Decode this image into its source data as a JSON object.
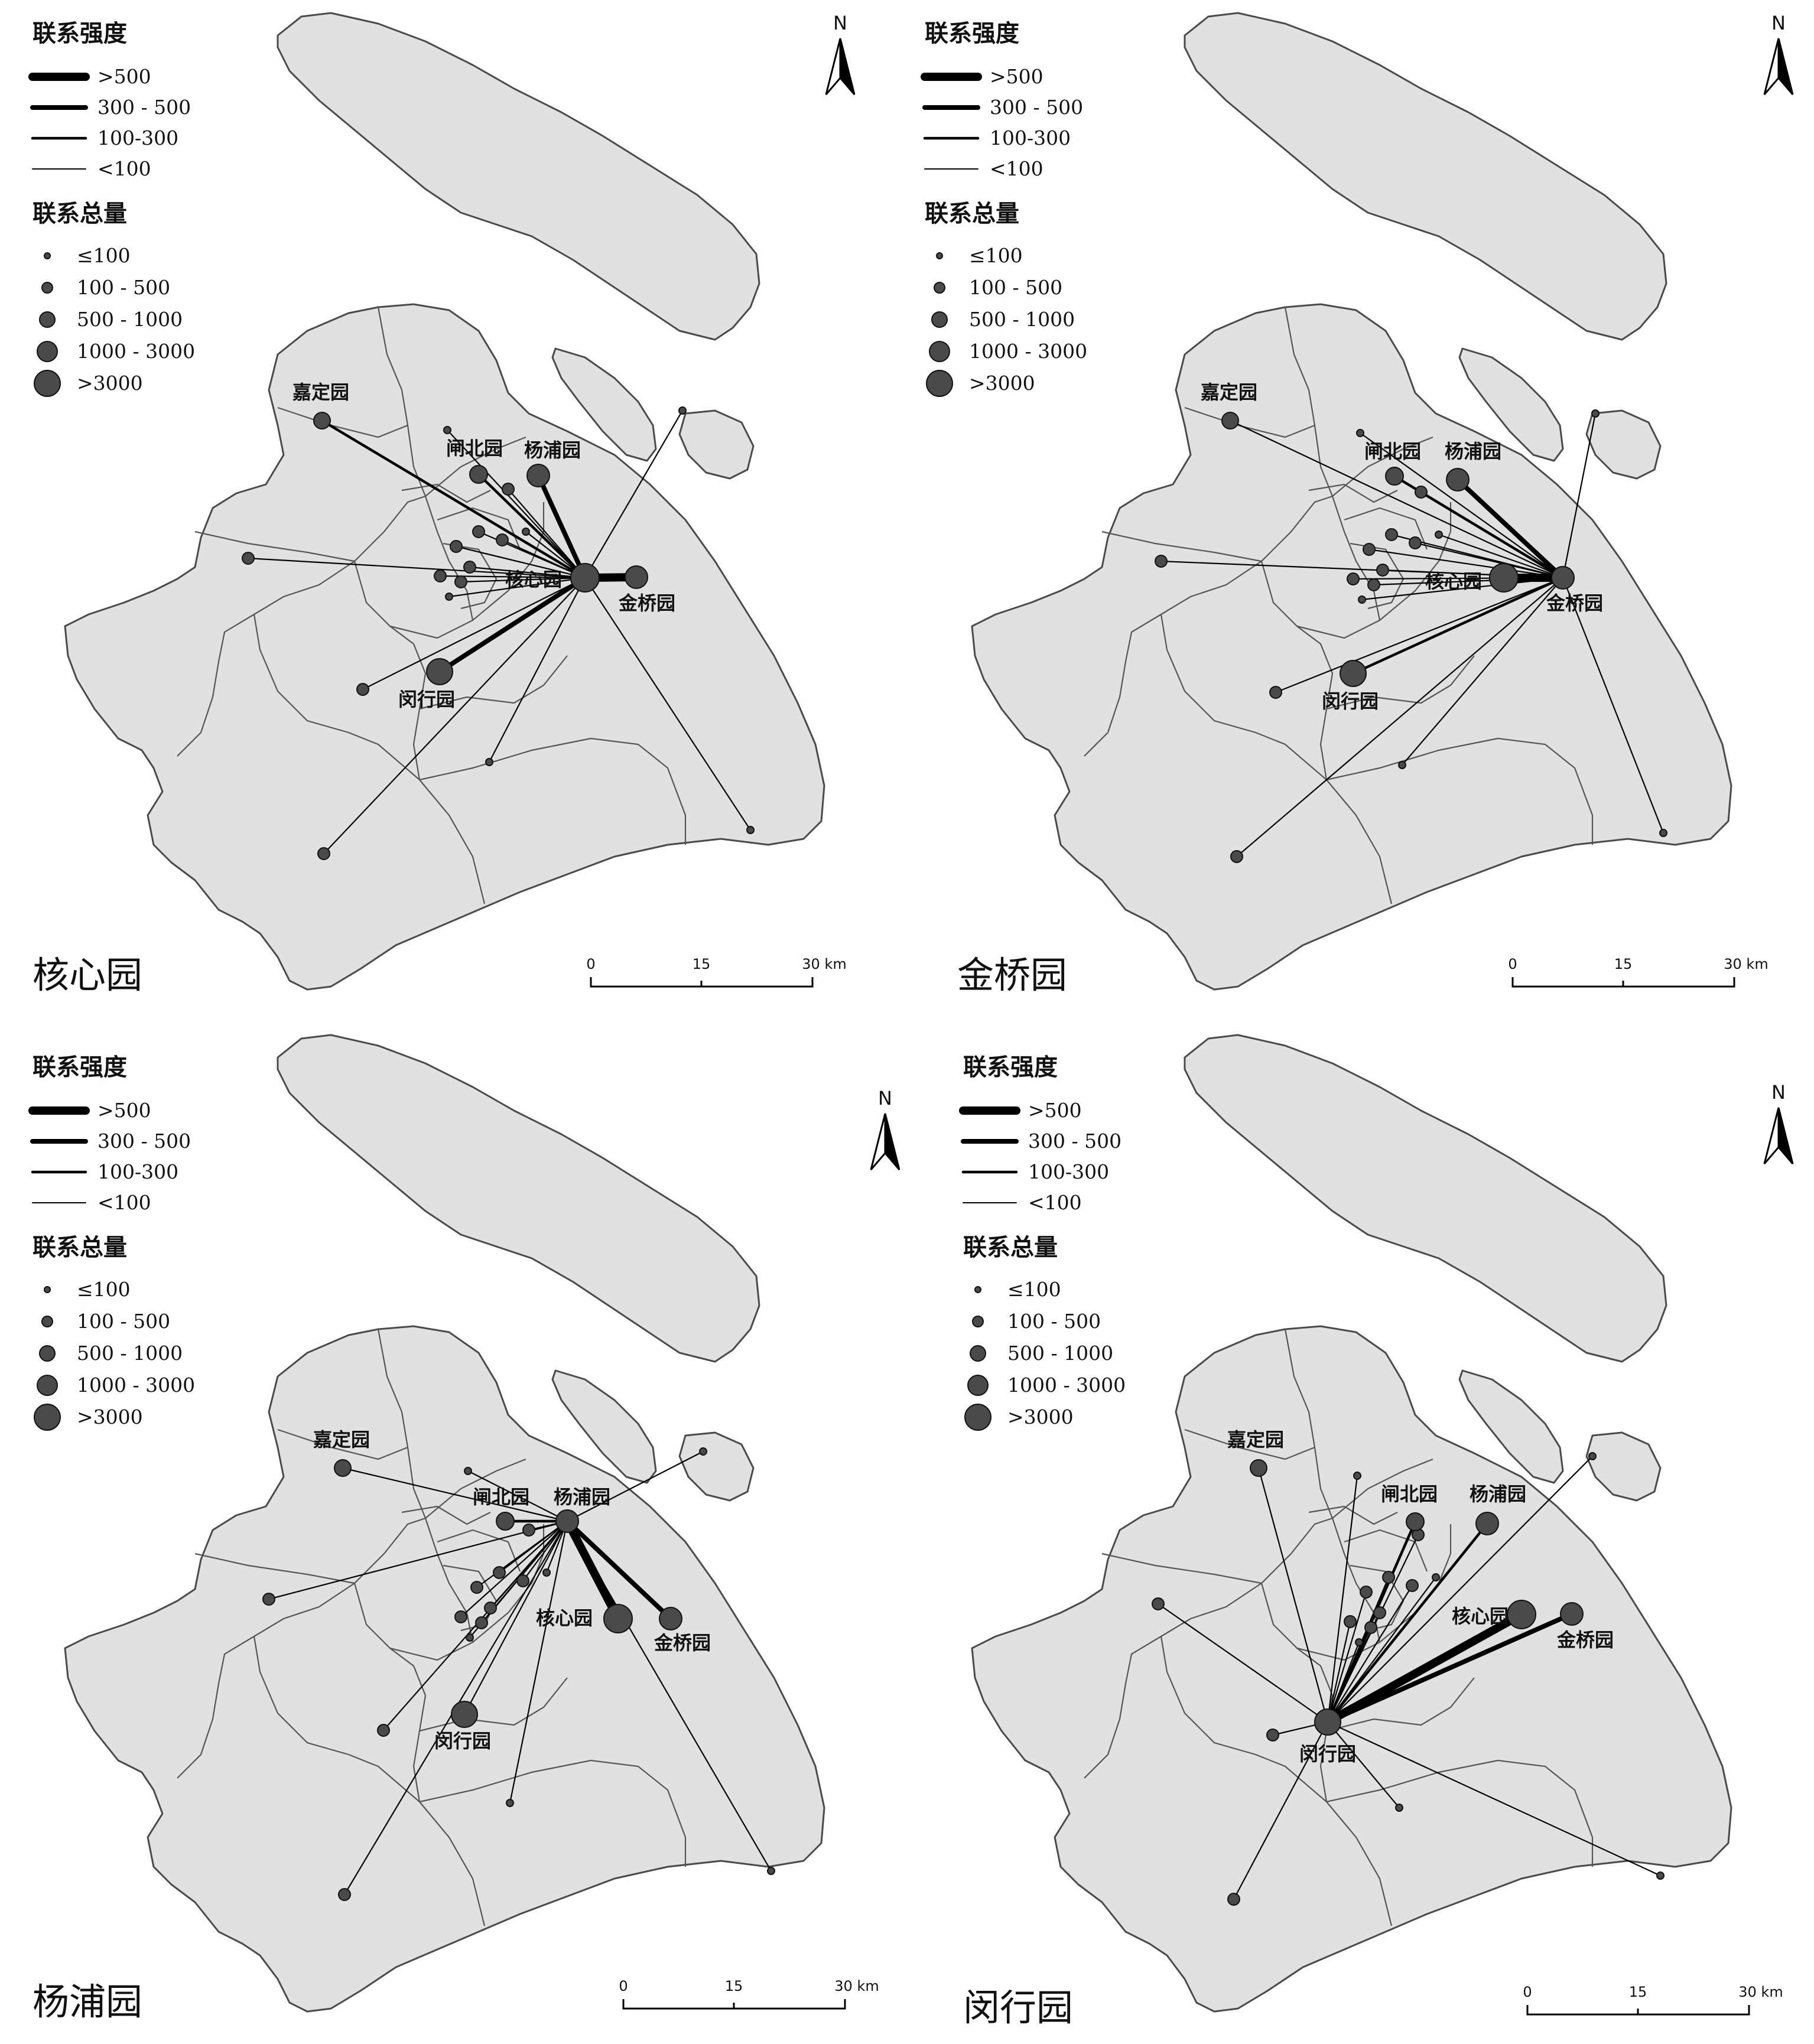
{
  "legend": {
    "strength_title": "联系强度",
    "strength_items": [
      ">500",
      "300 - 500",
      "100-300",
      "<100"
    ],
    "total_title": "联系总量",
    "total_items": [
      "≤100",
      "100 - 500",
      "500 - 1000",
      "1000 - 3000",
      ">3000"
    ]
  },
  "north_label": "N",
  "scale_bar": {
    "ticks": [
      "0",
      "15",
      "30 km"
    ]
  },
  "parks": {
    "hexin": "核心园",
    "jinqiao": "金桥园",
    "yangpu": "杨浦园",
    "minhang": "闵行园",
    "jiading": "嘉定园",
    "zhabei": "闸北园"
  },
  "panels": [
    {
      "id": "hexin",
      "title": "核心园",
      "hub": "hexin"
    },
    {
      "id": "jinqiao",
      "title": "金桥园",
      "hub": "jinqiao"
    },
    {
      "id": "yangpu",
      "title": "杨浦园",
      "hub": "yangpu"
    },
    {
      "id": "minhang",
      "title": "闵行园",
      "hub": "minhang"
    }
  ],
  "colors": {
    "land": "#e1e1e1",
    "node": "#4a4a4a",
    "line": "#000000"
  }
}
